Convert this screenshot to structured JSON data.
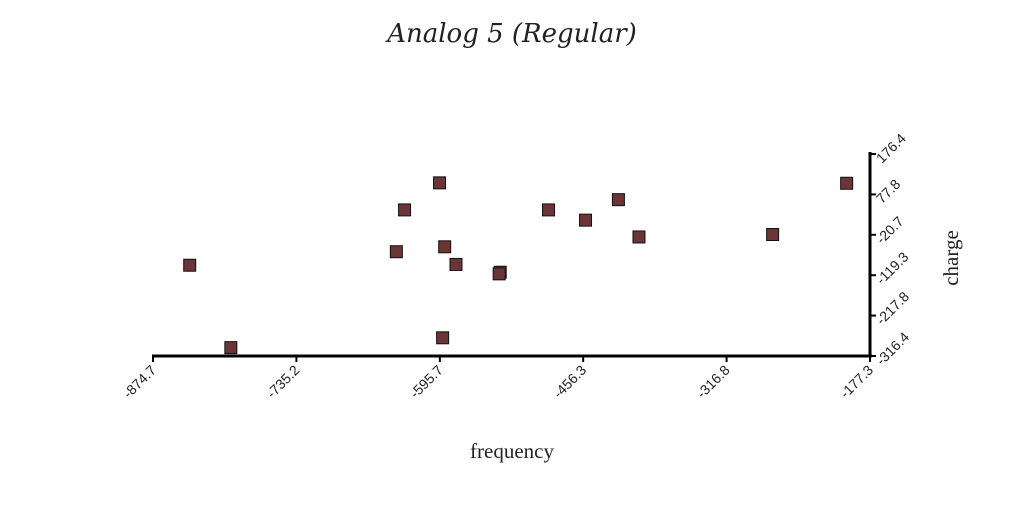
{
  "chart_data": {
    "type": "scatter",
    "title": "Analog 5 (Regular)",
    "xlabel": "frequency",
    "ylabel": "charge",
    "xlim": [
      -874.7,
      -177.3
    ],
    "ylim": [
      -316.4,
      176.4
    ],
    "x_ticks": [
      "-874.7",
      "-735.2",
      "-595.7",
      "-456.3",
      "-316.8",
      "-177.3"
    ],
    "y_ticks": [
      "-316.4",
      "-217.8",
      "-119.3",
      "-20.7",
      "77.8",
      "176.4"
    ],
    "x_tick_values": [
      -874.7,
      -735.2,
      -595.7,
      -456.3,
      -316.8,
      -177.3
    ],
    "y_tick_values": [
      -316.4,
      -217.8,
      -119.3,
      -20.7,
      77.8,
      176.4
    ],
    "grid": false,
    "marker": "square",
    "point_color": "#6b3535",
    "points": [
      {
        "x": -839,
        "y": -95
      },
      {
        "x": -799,
        "y": -296
      },
      {
        "x": -638,
        "y": -62
      },
      {
        "x": -630,
        "y": 40
      },
      {
        "x": -596,
        "y": 106
      },
      {
        "x": -591,
        "y": -50
      },
      {
        "x": -593,
        "y": -272
      },
      {
        "x": -580,
        "y": -93
      },
      {
        "x": -537,
        "y": -112
      },
      {
        "x": -538,
        "y": -116
      },
      {
        "x": -490,
        "y": 40
      },
      {
        "x": -454,
        "y": 15
      },
      {
        "x": -422,
        "y": 65
      },
      {
        "x": -402,
        "y": -26
      },
      {
        "x": -272,
        "y": -20
      },
      {
        "x": -200,
        "y": 105
      }
    ]
  }
}
